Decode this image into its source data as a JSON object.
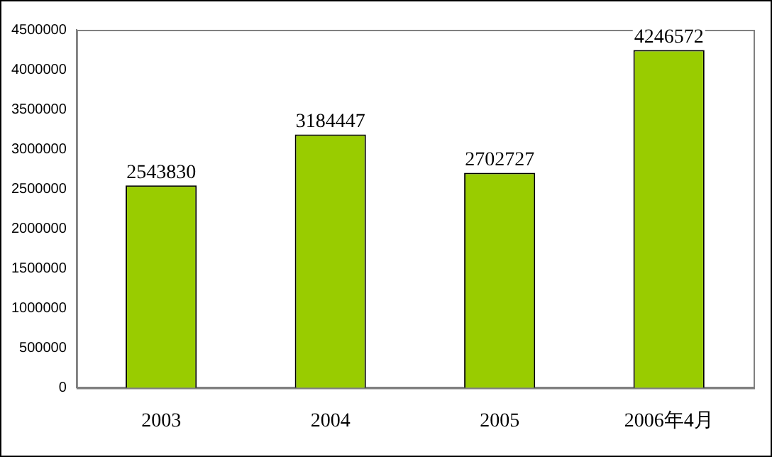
{
  "chart_data": {
    "type": "bar",
    "categories": [
      "2003",
      "2004",
      "2005",
      "2006年4月"
    ],
    "values": [
      2543830,
      3184447,
      2702727,
      4246572
    ],
    "color": "#99cc00",
    "ylim": [
      0,
      4500000
    ],
    "yticks": [
      0,
      500000,
      1000000,
      1500000,
      2000000,
      2500000,
      3000000,
      3500000,
      4000000,
      4500000
    ],
    "grid": false,
    "legend": false,
    "data_labels": true
  }
}
